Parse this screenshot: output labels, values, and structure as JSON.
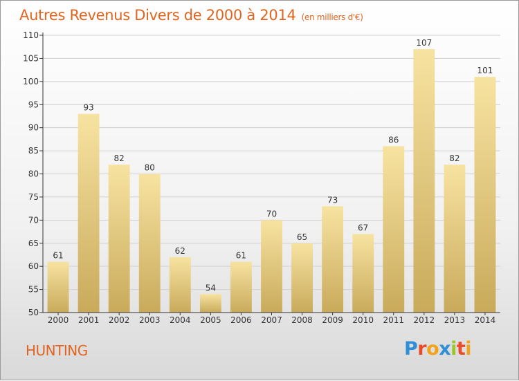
{
  "page": {
    "title": "Autres Revenus Divers de 2000 à 2014",
    "unit": "(en milliers d'€)",
    "subject": "HUNTING",
    "logo_letters": [
      "P",
      "r",
      "o",
      "x",
      "i",
      "t",
      "i"
    ],
    "logo_colors": [
      "#2f8fd6",
      "#e84b2a",
      "#f2a21b",
      "#2f8fd6",
      "#9bc52b",
      "#e84b2a",
      "#f2a21b"
    ]
  },
  "chart_data": {
    "type": "bar",
    "title": "Autres Revenus Divers de 2000 à 2014",
    "subtitle": "(en milliers d'€)",
    "xlabel": "",
    "ylabel": "",
    "categories": [
      "2000",
      "2001",
      "2002",
      "2003",
      "2004",
      "2005",
      "2006",
      "2007",
      "2008",
      "2009",
      "2010",
      "2011",
      "2012",
      "2013",
      "2014"
    ],
    "values": [
      61,
      93,
      82,
      80,
      62,
      54,
      61,
      70,
      65,
      73,
      67,
      86,
      107,
      82,
      101
    ],
    "ylim": [
      50,
      110
    ],
    "yticks": [
      50,
      55,
      60,
      65,
      70,
      75,
      80,
      85,
      90,
      95,
      100,
      105,
      110
    ],
    "grid": true,
    "colors": {
      "bar_top": "#f7e3a1",
      "bar_bottom": "#c9aa5b",
      "text": "#e2641e",
      "axis": "#333333",
      "grid": "#cfcfcf"
    }
  }
}
